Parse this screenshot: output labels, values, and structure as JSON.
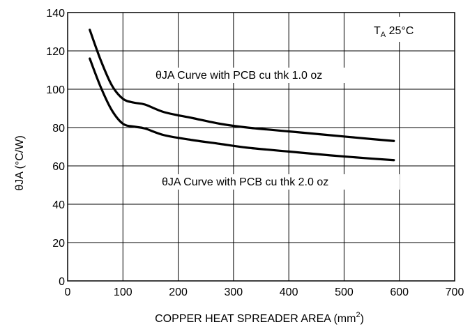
{
  "chart_data": {
    "type": "line",
    "xlabel": "COPPER HEAT SPREADER AREA (mm",
    "xlabel_sup": "2",
    "xlabel_end": ")",
    "ylabel": "θJA (°C/W)",
    "xlim": [
      0,
      700
    ],
    "ylim": [
      0,
      140
    ],
    "xticks": [
      0,
      100,
      200,
      300,
      400,
      500,
      600,
      700
    ],
    "yticks": [
      0,
      20,
      40,
      60,
      80,
      100,
      120,
      140
    ],
    "grid": true,
    "series": [
      {
        "name": "θJA Curve with PCB cu thk 1.0 oz",
        "x": [
          40,
          60,
          80,
          100,
          120,
          140,
          175,
          225,
          275,
          325,
          400,
          475,
          550,
          590
        ],
        "y": [
          131,
          115,
          102,
          95,
          93,
          92,
          88,
          85,
          82,
          80,
          78,
          76,
          74,
          73
        ]
      },
      {
        "name": "θJA Curve with PCB cu thk 2.0 oz",
        "x": [
          40,
          60,
          80,
          100,
          120,
          140,
          175,
          225,
          275,
          325,
          400,
          475,
          550,
          590
        ],
        "y": [
          116,
          101,
          89,
          82,
          80.5,
          79.5,
          76,
          73.5,
          71.5,
          69.5,
          67.5,
          65.5,
          63.8,
          63
        ]
      }
    ],
    "annotations": {
      "curve_1oz": "θJA Curve with PCB cu thk 1.0 oz",
      "curve_2oz": "θJA Curve with PCB cu thk 2.0 oz",
      "ambient_prefix": "T",
      "ambient_sub": "A",
      "ambient_value": " 25°C"
    }
  }
}
